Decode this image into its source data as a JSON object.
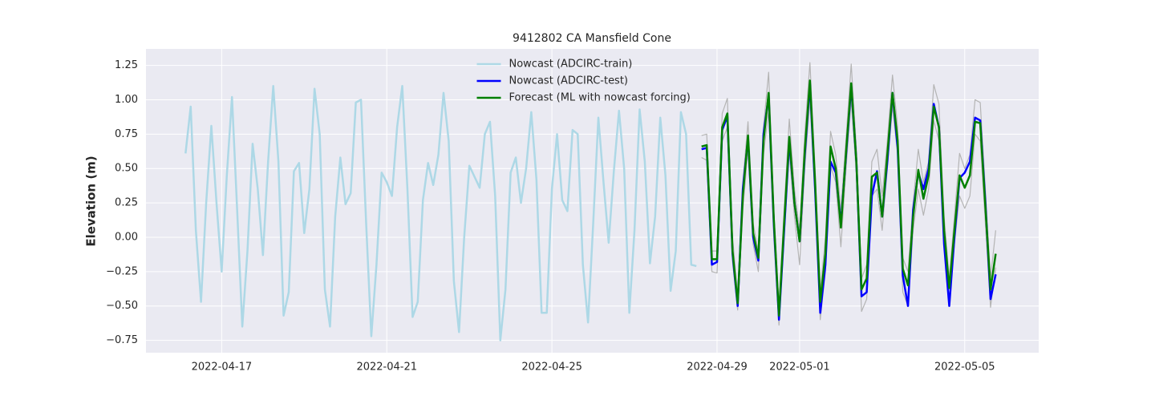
{
  "chart_data": {
    "type": "line",
    "title": "9412802 CA Mansfield Cone",
    "y_label": "Elevation (m)",
    "x": [
      "2022-04-16 03:00",
      "2022-04-16 06:00",
      "2022-04-16 09:00",
      "2022-04-16 12:00",
      "2022-04-16 15:00",
      "2022-04-16 18:00",
      "2022-04-16 21:00",
      "2022-04-17 00:00",
      "2022-04-17 03:00",
      "2022-04-17 06:00",
      "2022-04-17 09:00",
      "2022-04-17 12:00",
      "2022-04-17 15:00",
      "2022-04-17 18:00",
      "2022-04-17 21:00",
      "2022-04-18 00:00",
      "2022-04-18 03:00",
      "2022-04-18 06:00",
      "2022-04-18 09:00",
      "2022-04-18 12:00",
      "2022-04-18 15:00",
      "2022-04-18 18:00",
      "2022-04-18 21:00",
      "2022-04-19 00:00",
      "2022-04-19 03:00",
      "2022-04-19 06:00",
      "2022-04-19 09:00",
      "2022-04-19 12:00",
      "2022-04-19 15:00",
      "2022-04-19 18:00",
      "2022-04-19 21:00",
      "2022-04-20 00:00",
      "2022-04-20 03:00",
      "2022-04-20 06:00",
      "2022-04-20 09:00",
      "2022-04-20 12:00",
      "2022-04-20 15:00",
      "2022-04-20 18:00",
      "2022-04-20 21:00",
      "2022-04-21 00:00",
      "2022-04-21 03:00",
      "2022-04-21 06:00",
      "2022-04-21 09:00",
      "2022-04-21 12:00",
      "2022-04-21 15:00",
      "2022-04-21 18:00",
      "2022-04-21 21:00",
      "2022-04-22 00:00",
      "2022-04-22 03:00",
      "2022-04-22 06:00",
      "2022-04-22 09:00",
      "2022-04-22 12:00",
      "2022-04-22 15:00",
      "2022-04-22 18:00",
      "2022-04-22 21:00",
      "2022-04-23 00:00",
      "2022-04-23 03:00",
      "2022-04-23 06:00",
      "2022-04-23 09:00",
      "2022-04-23 12:00",
      "2022-04-23 15:00",
      "2022-04-23 18:00",
      "2022-04-23 21:00",
      "2022-04-24 00:00",
      "2022-04-24 03:00",
      "2022-04-24 06:00",
      "2022-04-24 09:00",
      "2022-04-24 12:00",
      "2022-04-24 15:00",
      "2022-04-24 18:00",
      "2022-04-24 21:00",
      "2022-04-25 00:00",
      "2022-04-25 03:00",
      "2022-04-25 06:00",
      "2022-04-25 09:00",
      "2022-04-25 12:00",
      "2022-04-25 15:00",
      "2022-04-25 18:00",
      "2022-04-25 21:00",
      "2022-04-26 00:00",
      "2022-04-26 03:00",
      "2022-04-26 06:00",
      "2022-04-26 09:00",
      "2022-04-26 12:00",
      "2022-04-26 15:00",
      "2022-04-26 18:00",
      "2022-04-26 21:00",
      "2022-04-27 00:00",
      "2022-04-27 03:00",
      "2022-04-27 06:00",
      "2022-04-27 09:00",
      "2022-04-27 12:00",
      "2022-04-27 15:00",
      "2022-04-27 18:00",
      "2022-04-27 21:00",
      "2022-04-28 00:00",
      "2022-04-28 03:00",
      "2022-04-28 06:00",
      "2022-04-28 09:00",
      "2022-04-28 12:00",
      "2022-04-28 15:00",
      "2022-04-28 18:00",
      "2022-04-28 21:00",
      "2022-04-29 00:00",
      "2022-04-29 03:00",
      "2022-04-29 06:00",
      "2022-04-29 09:00",
      "2022-04-29 12:00",
      "2022-04-29 15:00",
      "2022-04-29 18:00",
      "2022-04-29 21:00",
      "2022-04-30 00:00",
      "2022-04-30 03:00",
      "2022-04-30 06:00",
      "2022-04-30 09:00",
      "2022-04-30 12:00",
      "2022-04-30 15:00",
      "2022-04-30 18:00",
      "2022-04-30 21:00",
      "2022-05-01 00:00",
      "2022-05-01 03:00",
      "2022-05-01 06:00",
      "2022-05-01 09:00",
      "2022-05-01 12:00",
      "2022-05-01 15:00",
      "2022-05-01 18:00",
      "2022-05-01 21:00",
      "2022-05-02 00:00",
      "2022-05-02 03:00",
      "2022-05-02 06:00",
      "2022-05-02 09:00",
      "2022-05-02 12:00",
      "2022-05-02 15:00",
      "2022-05-02 18:00",
      "2022-05-02 21:00",
      "2022-05-03 00:00",
      "2022-05-03 03:00",
      "2022-05-03 06:00",
      "2022-05-03 09:00",
      "2022-05-03 12:00",
      "2022-05-03 15:00",
      "2022-05-03 18:00",
      "2022-05-03 21:00",
      "2022-05-04 00:00",
      "2022-05-04 03:00",
      "2022-05-04 06:00",
      "2022-05-04 09:00",
      "2022-05-04 12:00",
      "2022-05-04 15:00",
      "2022-05-04 18:00",
      "2022-05-04 21:00",
      "2022-05-05 00:00",
      "2022-05-05 03:00",
      "2022-05-05 06:00",
      "2022-05-05 09:00",
      "2022-05-05 12:00",
      "2022-05-05 15:00",
      "2022-05-05 18:00"
    ],
    "series": [
      {
        "color": "#b4b4b4",
        "values": [
          null,
          null,
          null,
          null,
          null,
          null,
          null,
          null,
          null,
          null,
          null,
          null,
          null,
          null,
          null,
          null,
          null,
          null,
          null,
          null,
          null,
          null,
          null,
          null,
          null,
          null,
          null,
          null,
          null,
          null,
          null,
          null,
          null,
          null,
          null,
          null,
          null,
          null,
          null,
          null,
          null,
          null,
          null,
          null,
          null,
          null,
          null,
          null,
          null,
          null,
          null,
          null,
          null,
          null,
          null,
          null,
          null,
          null,
          null,
          null,
          null,
          null,
          null,
          null,
          null,
          null,
          null,
          null,
          null,
          null,
          null,
          null,
          null,
          null,
          null,
          null,
          null,
          null,
          null,
          null,
          null,
          null,
          null,
          null,
          null,
          null,
          null,
          null,
          null,
          null,
          null,
          null,
          null,
          null,
          null,
          null,
          null,
          null,
          null,
          null,
          0.74,
          0.75,
          -0.1,
          -0.1,
          0.9,
          1.01,
          0.0,
          -0.42,
          0.4,
          0.84,
          0.1,
          -0.1,
          0.8,
          1.2,
          0.2,
          -0.5,
          0.2,
          0.86,
          0.35,
          0.05,
          0.75,
          1.27,
          0.5,
          -0.4,
          0.0,
          0.77,
          0.6,
          0.2,
          0.72,
          1.26,
          0.65,
          -0.3,
          -0.2,
          0.55,
          0.64,
          0.3,
          0.7,
          1.18,
          0.8,
          -0.15,
          -0.25,
          0.25,
          0.64,
          0.4,
          0.55,
          1.11,
          0.97,
          0.15,
          -0.3,
          0.15,
          0.61,
          0.5,
          0.6,
          1.0,
          0.98,
          0.35,
          -0.3,
          0.05
        ]
      },
      {
        "color": "#b4b4b4",
        "values": [
          null,
          null,
          null,
          null,
          null,
          null,
          null,
          null,
          null,
          null,
          null,
          null,
          null,
          null,
          null,
          null,
          null,
          null,
          null,
          null,
          null,
          null,
          null,
          null,
          null,
          null,
          null,
          null,
          null,
          null,
          null,
          null,
          null,
          null,
          null,
          null,
          null,
          null,
          null,
          null,
          null,
          null,
          null,
          null,
          null,
          null,
          null,
          null,
          null,
          null,
          null,
          null,
          null,
          null,
          null,
          null,
          null,
          null,
          null,
          null,
          null,
          null,
          null,
          null,
          null,
          null,
          null,
          null,
          null,
          null,
          null,
          null,
          null,
          null,
          null,
          null,
          null,
          null,
          null,
          null,
          null,
          null,
          null,
          null,
          null,
          null,
          null,
          null,
          null,
          null,
          null,
          null,
          null,
          null,
          null,
          null,
          null,
          null,
          null,
          null,
          0.58,
          0.56,
          -0.25,
          -0.26,
          0.7,
          0.8,
          -0.18,
          -0.53,
          0.2,
          0.64,
          -0.05,
          -0.25,
          0.6,
          0.92,
          0.0,
          -0.64,
          0.0,
          0.62,
          0.15,
          -0.2,
          0.5,
          1.0,
          0.3,
          -0.6,
          -0.25,
          0.52,
          0.4,
          -0.07,
          0.5,
          1.0,
          0.45,
          -0.54,
          -0.45,
          0.3,
          0.35,
          0.05,
          0.5,
          0.95,
          0.6,
          -0.4,
          -0.5,
          0.05,
          0.35,
          0.16,
          0.35,
          0.85,
          0.7,
          -0.05,
          -0.47,
          -0.05,
          0.3,
          0.21,
          0.3,
          0.75,
          0.7,
          0.1,
          -0.51,
          -0.22
        ]
      },
      {
        "name": "Nowcast (ADCIRC-train)",
        "color": "#add8e6",
        "values": [
          0.61,
          0.95,
          0.05,
          -0.47,
          0.25,
          0.81,
          0.25,
          -0.25,
          0.45,
          1.02,
          0.2,
          -0.65,
          -0.1,
          0.68,
          0.35,
          -0.13,
          0.55,
          1.1,
          0.55,
          -0.57,
          -0.4,
          0.48,
          0.54,
          0.03,
          0.35,
          1.08,
          0.75,
          -0.38,
          -0.65,
          0.15,
          0.58,
          0.24,
          0.32,
          0.98,
          1.0,
          0.1,
          -0.72,
          -0.2,
          0.47,
          0.4,
          0.3,
          0.8,
          1.1,
          0.35,
          -0.58,
          -0.47,
          0.27,
          0.54,
          0.38,
          0.6,
          1.05,
          0.7,
          -0.32,
          -0.69,
          0.0,
          0.52,
          0.44,
          0.36,
          0.75,
          0.84,
          0.3,
          -0.75,
          -0.38,
          0.47,
          0.58,
          0.25,
          0.5,
          0.91,
          0.42,
          -0.55,
          -0.55,
          0.35,
          0.75,
          0.27,
          0.19,
          0.78,
          0.75,
          -0.2,
          -0.62,
          0.1,
          0.87,
          0.4,
          -0.04,
          0.48,
          0.92,
          0.5,
          -0.55,
          0.05,
          0.93,
          0.55,
          -0.19,
          0.15,
          0.87,
          0.45,
          -0.39,
          -0.1,
          0.91,
          0.75,
          -0.2,
          -0.21,
          null,
          null,
          null,
          null,
          null,
          null,
          null,
          null,
          null,
          null,
          null,
          null,
          null,
          null,
          null,
          null,
          null,
          null,
          null,
          null,
          null,
          null,
          null,
          null,
          null,
          null,
          null,
          null,
          null,
          null,
          null,
          null,
          null,
          null,
          null,
          null,
          null,
          null,
          null,
          null,
          null,
          null,
          null,
          null,
          null,
          null,
          null,
          null,
          null,
          null,
          null,
          null,
          null,
          null,
          null,
          null,
          null,
          null
        ]
      },
      {
        "name": "Nowcast (ADCIRC-test)",
        "color": "#0000ff",
        "values": [
          null,
          null,
          null,
          null,
          null,
          null,
          null,
          null,
          null,
          null,
          null,
          null,
          null,
          null,
          null,
          null,
          null,
          null,
          null,
          null,
          null,
          null,
          null,
          null,
          null,
          null,
          null,
          null,
          null,
          null,
          null,
          null,
          null,
          null,
          null,
          null,
          null,
          null,
          null,
          null,
          null,
          null,
          null,
          null,
          null,
          null,
          null,
          null,
          null,
          null,
          null,
          null,
          null,
          null,
          null,
          null,
          null,
          null,
          null,
          null,
          null,
          null,
          null,
          null,
          null,
          null,
          null,
          null,
          null,
          null,
          null,
          null,
          null,
          null,
          null,
          null,
          null,
          null,
          null,
          null,
          null,
          null,
          null,
          null,
          null,
          null,
          null,
          null,
          null,
          null,
          null,
          null,
          null,
          null,
          null,
          null,
          null,
          null,
          null,
          null,
          0.64,
          0.65,
          -0.2,
          -0.18,
          0.78,
          0.88,
          -0.12,
          -0.5,
          0.35,
          0.72,
          0.0,
          -0.17,
          0.75,
          1.03,
          0.1,
          -0.6,
          0.05,
          0.7,
          0.25,
          -0.03,
          0.6,
          1.12,
          0.35,
          -0.55,
          -0.2,
          0.55,
          0.47,
          0.1,
          0.6,
          1.1,
          0.55,
          -0.43,
          -0.4,
          0.3,
          0.48,
          0.15,
          0.55,
          1.05,
          0.65,
          -0.28,
          -0.5,
          0.2,
          0.47,
          0.35,
          0.5,
          0.97,
          0.8,
          -0.05,
          -0.5,
          0.0,
          0.43,
          0.47,
          0.55,
          0.87,
          0.85,
          0.25,
          -0.45,
          -0.27
        ]
      },
      {
        "name": "Forecast (ML with nowcast forcing)",
        "color": "#008000",
        "values": [
          null,
          null,
          null,
          null,
          null,
          null,
          null,
          null,
          null,
          null,
          null,
          null,
          null,
          null,
          null,
          null,
          null,
          null,
          null,
          null,
          null,
          null,
          null,
          null,
          null,
          null,
          null,
          null,
          null,
          null,
          null,
          null,
          null,
          null,
          null,
          null,
          null,
          null,
          null,
          null,
          null,
          null,
          null,
          null,
          null,
          null,
          null,
          null,
          null,
          null,
          null,
          null,
          null,
          null,
          null,
          null,
          null,
          null,
          null,
          null,
          null,
          null,
          null,
          null,
          null,
          null,
          null,
          null,
          null,
          null,
          null,
          null,
          null,
          null,
          null,
          null,
          null,
          null,
          null,
          null,
          null,
          null,
          null,
          null,
          null,
          null,
          null,
          null,
          null,
          null,
          null,
          null,
          null,
          null,
          null,
          null,
          null,
          null,
          null,
          null,
          0.66,
          0.67,
          -0.16,
          -0.16,
          0.8,
          0.9,
          -0.1,
          -0.48,
          0.3,
          0.74,
          0.03,
          -0.15,
          0.7,
          1.05,
          0.13,
          -0.57,
          0.1,
          0.73,
          0.25,
          -0.03,
          0.63,
          1.14,
          0.4,
          -0.47,
          -0.12,
          0.66,
          0.5,
          0.07,
          0.62,
          1.12,
          0.55,
          -0.38,
          -0.3,
          0.44,
          0.47,
          0.15,
          0.6,
          1.05,
          0.7,
          -0.23,
          -0.35,
          0.15,
          0.49,
          0.28,
          0.45,
          0.95,
          0.8,
          0.05,
          -0.37,
          0.05,
          0.45,
          0.36,
          0.45,
          0.84,
          0.83,
          0.22,
          -0.38,
          -0.12
        ]
      }
    ],
    "xlim": [
      "2022-04-15 04:00",
      "2022-05-06 19:00"
    ],
    "xticks": [
      "2022-04-17",
      "2022-04-21",
      "2022-04-25",
      "2022-04-29",
      "2022-05-01",
      "2022-05-05"
    ],
    "ylim": [
      -0.84,
      1.37
    ],
    "yticks": [
      {
        "value": -0.75,
        "label": "−0.75"
      },
      {
        "value": -0.5,
        "label": "−0.50"
      },
      {
        "value": -0.25,
        "label": "−0.25"
      },
      {
        "value": 0,
        "label": "0.00"
      },
      0.25,
      {
        "value": 0.5,
        "label": "0.50"
      },
      0.75,
      {
        "value": 1,
        "label": "1.00"
      },
      1.25
    ],
    "grid": true,
    "legend": "upper center",
    "background": "#eaeaf2"
  }
}
